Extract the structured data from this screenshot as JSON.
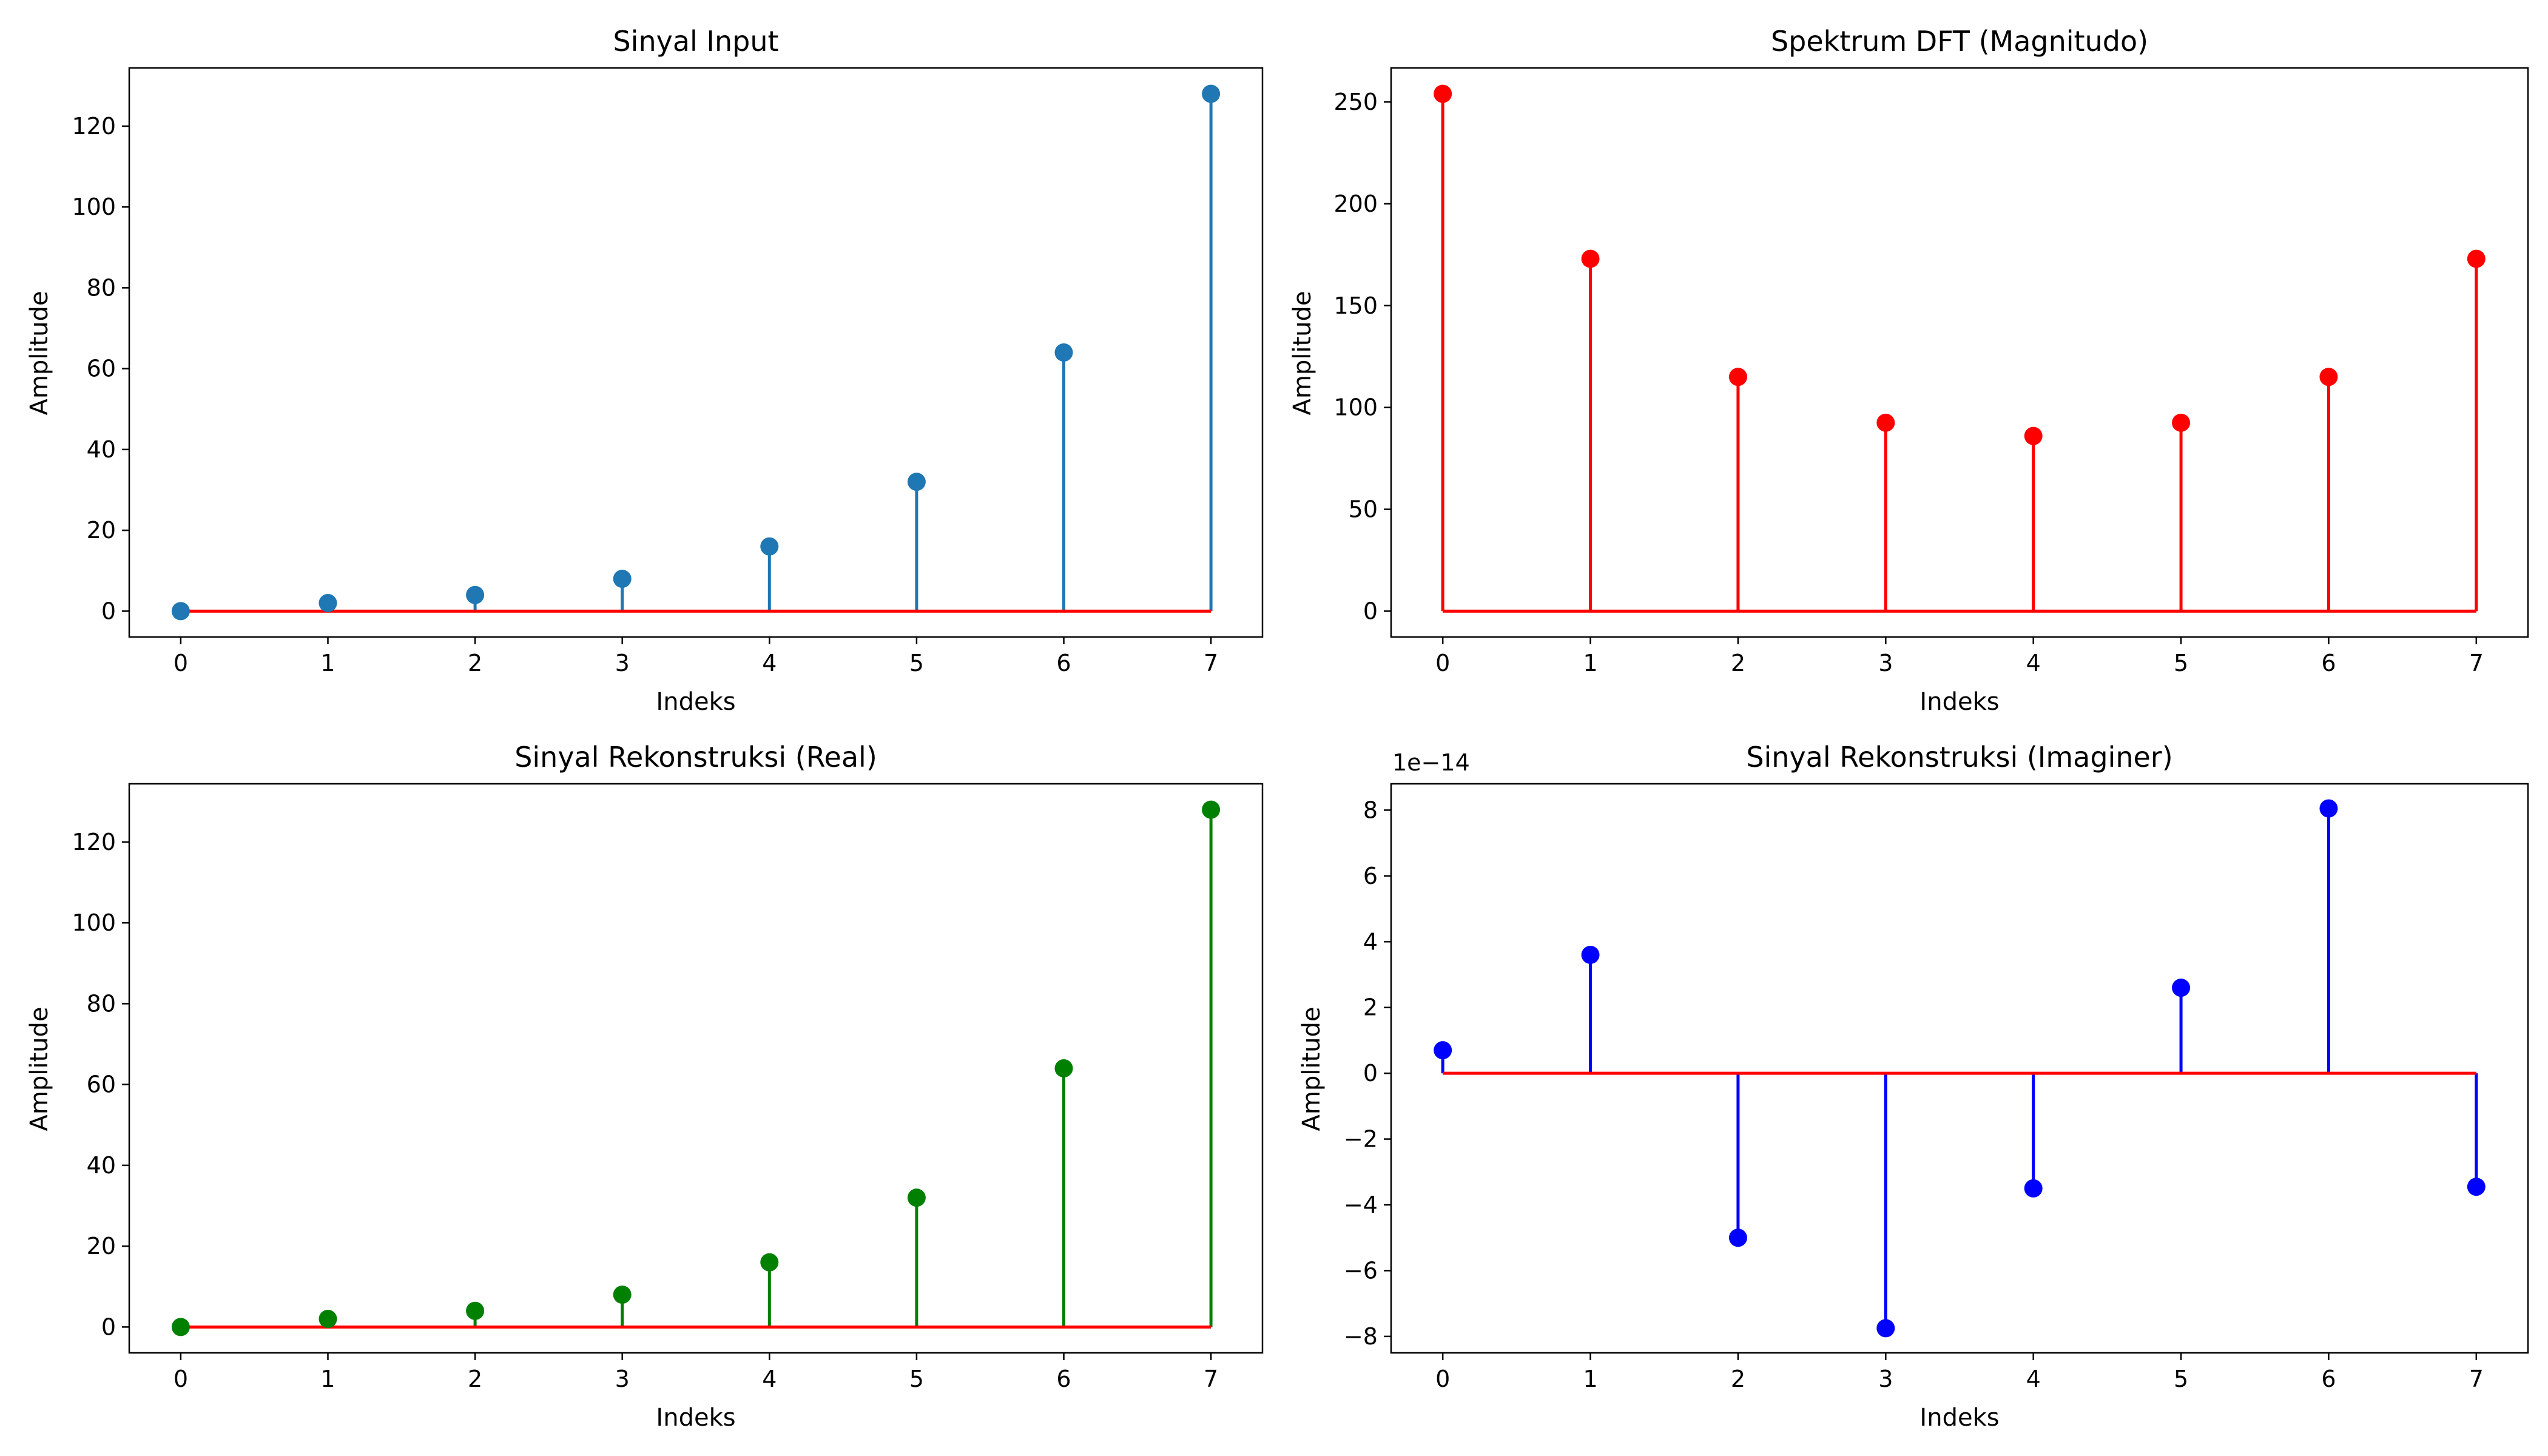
{
  "figure": {
    "background": "#ffffff"
  },
  "chart_data": [
    {
      "type": "stem",
      "title": "Sinyal Input",
      "xlabel": "Indeks",
      "ylabel": "Amplitude",
      "x": [
        0,
        1,
        2,
        3,
        4,
        5,
        6,
        7
      ],
      "values": [
        0,
        2,
        4,
        8,
        16,
        32,
        64,
        128
      ],
      "xlim": [
        -0.35,
        7.35
      ],
      "ylim": [
        -6.4,
        134.4
      ],
      "xticks": [
        0,
        1,
        2,
        3,
        4,
        5,
        6,
        7
      ],
      "yticks": [
        0,
        20,
        40,
        60,
        80,
        100,
        120
      ],
      "offset_text": "",
      "stem_color": "#1f77b4",
      "baseline_color": "#ff0000",
      "grid": false
    },
    {
      "type": "stem",
      "title": "Spektrum DFT (Magnitudo)",
      "xlabel": "Indeks",
      "ylabel": "Amplitude",
      "x": [
        0,
        1,
        2,
        3,
        4,
        5,
        6,
        7
      ],
      "values": [
        254,
        173,
        115,
        92.5,
        86,
        92.5,
        115,
        173
      ],
      "xlim": [
        -0.35,
        7.35
      ],
      "ylim": [
        -12.7,
        266.7
      ],
      "xticks": [
        0,
        1,
        2,
        3,
        4,
        5,
        6,
        7
      ],
      "yticks": [
        0,
        50,
        100,
        150,
        200,
        250
      ],
      "offset_text": "",
      "stem_color": "#ff0000",
      "baseline_color": "#ff0000",
      "grid": false
    },
    {
      "type": "stem",
      "title": "Sinyal Rekonstruksi (Real)",
      "xlabel": "Indeks",
      "ylabel": "Amplitude",
      "x": [
        0,
        1,
        2,
        3,
        4,
        5,
        6,
        7
      ],
      "values": [
        0,
        2,
        4,
        8,
        16,
        32,
        64,
        128
      ],
      "xlim": [
        -0.35,
        7.35
      ],
      "ylim": [
        -6.4,
        134.4
      ],
      "xticks": [
        0,
        1,
        2,
        3,
        4,
        5,
        6,
        7
      ],
      "yticks": [
        0,
        20,
        40,
        60,
        80,
        100,
        120
      ],
      "offset_text": "",
      "stem_color": "#008000",
      "baseline_color": "#ff0000",
      "grid": false
    },
    {
      "type": "stem",
      "title": "Sinyal Rekonstruksi (Imaginer)",
      "xlabel": "Indeks",
      "ylabel": "Amplitude",
      "x": [
        0,
        1,
        2,
        3,
        4,
        5,
        6,
        7
      ],
      "values": [
        0.7,
        3.6,
        -5.0,
        -7.75,
        -3.5,
        2.6,
        8.05,
        -3.45
      ],
      "xlim": [
        -0.35,
        7.35
      ],
      "ylim": [
        -8.5,
        8.8
      ],
      "xticks": [
        0,
        1,
        2,
        3,
        4,
        5,
        6,
        7
      ],
      "yticks": [
        -8,
        -6,
        -4,
        -2,
        0,
        2,
        4,
        6,
        8
      ],
      "offset_text": "1e−14",
      "stem_color": "#0000ff",
      "baseline_color": "#ff0000",
      "grid": false
    }
  ]
}
